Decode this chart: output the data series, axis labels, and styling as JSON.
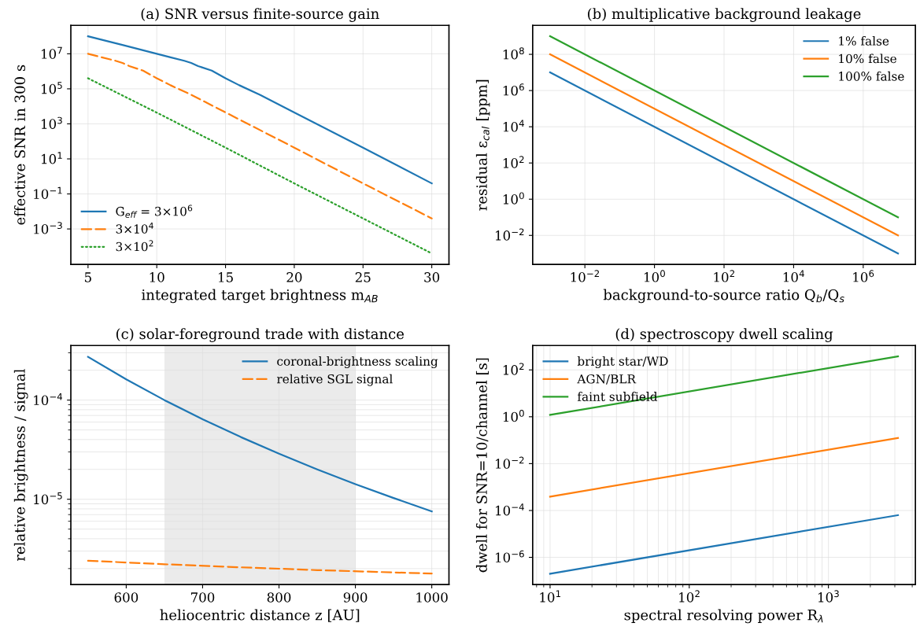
{
  "chart_data": [
    {
      "type": "line",
      "title": "(a) SNR versus finite-source gain",
      "xlabel": "integrated target brightness m$_{AB}$",
      "ylabel": "effective SNR in 300 s",
      "log": "y",
      "grid": true,
      "legend": "bottom left",
      "xlim": [
        3.75,
        31.25
      ],
      "xticks": [
        5,
        10,
        15,
        20,
        25,
        30
      ],
      "ylim": [
        9.5e-06,
        420000000.0
      ],
      "yticks": [
        {
          "value": 0.001,
          "label": "10$^{−3}$"
        },
        {
          "value": 0.1,
          "label": "10$^{−1}$"
        },
        {
          "value": 10,
          "label": "10$^{1}$"
        },
        {
          "value": 1000,
          "label": "10$^{3}$"
        },
        {
          "value": 100000,
          "label": "10$^{5}$"
        },
        {
          "value": 10000000,
          "label": "10$^{7}$"
        }
      ],
      "series": [
        {
          "name": "G$_{eff}$ = 3×10$^{6}$",
          "color": "#1f77b4",
          "line_style": "solid",
          "x": [
            5,
            7.5,
            10,
            11,
            12,
            12.5,
            13,
            14,
            15,
            16,
            17.5,
            20,
            25,
            30
          ],
          "values": [
            100000000.0,
            32000000.0,
            10000000.0,
            6300000.0,
            4000000.0,
            3000000.0,
            2000000.0,
            1100000.0,
            400000.0,
            160000.0,
            46000.0,
            4500.0,
            44,
            0.4
          ]
        },
        {
          "name": "3×10$^{4}$",
          "color": "#ff7f0e",
          "line_style": "dashed",
          "x": [
            5,
            6,
            7,
            7.5,
            8,
            9,
            10,
            11,
            12.5,
            15,
            20,
            25,
            30
          ],
          "values": [
            10000000.0,
            6300000.0,
            4000000.0,
            3000000.0,
            2000000.0,
            1100000.0,
            400000.0,
            160000.0,
            46000.0,
            4500.0,
            44,
            0.4,
            0.004
          ]
        },
        {
          "name": "3×10$^{2}$",
          "color": "#2ca02c",
          "line_style": "dotted",
          "x": [
            5,
            10,
            15,
            20,
            25,
            30
          ],
          "values": [
            400000.0,
            4400.0,
            44,
            0.4,
            0.004,
            4e-05
          ]
        }
      ]
    },
    {
      "type": "line",
      "title": "(b) multiplicative background leakage",
      "xlabel": "background-to-source ratio Q$_{b}$/Q$_{s}$",
      "ylabel": "residual ε$_{cal}$ [ppm]",
      "log": "xy",
      "grid": true,
      "legend": "top right",
      "xlim": [
        0.000316,
        31600000.0
      ],
      "ylim": [
        0.000251,
        3980000000.0
      ],
      "xticks": [
        {
          "value": 0.01,
          "label": "10$^{−2}$"
        },
        {
          "value": 1,
          "label": "10$^{0}$"
        },
        {
          "value": 100,
          "label": "10$^{2}$"
        },
        {
          "value": 10000,
          "label": "10$^{4}$"
        },
        {
          "value": 1000000,
          "label": "10$^{6}$"
        }
      ],
      "yticks": [
        {
          "value": 0.01,
          "label": "10$^{−2}$"
        },
        {
          "value": 1,
          "label": "10$^{0}$"
        },
        {
          "value": 100,
          "label": "10$^{2}$"
        },
        {
          "value": 10000,
          "label": "10$^{4}$"
        },
        {
          "value": 1000000,
          "label": "10$^{6}$"
        },
        {
          "value": 100000000,
          "label": "10$^{8}$"
        }
      ],
      "series": [
        {
          "name": "1% false",
          "color": "#1f77b4",
          "x": [
            0.001,
            10000,
            10000000
          ],
          "values": [
            10000000.0,
            1,
            0.001
          ]
        },
        {
          "name": "10% false",
          "color": "#ff7f0e",
          "x": [
            0.001,
            10000,
            10000000
          ],
          "values": [
            100000000.0,
            10,
            0.01
          ]
        },
        {
          "name": "100% false",
          "color": "#2ca02c",
          "x": [
            0.001,
            10000,
            10000000
          ],
          "values": [
            1000000000.0,
            100,
            0.1
          ]
        }
      ]
    },
    {
      "type": "line",
      "title": "(c) solar-foreground trade with distance",
      "xlabel": "heliocentric distance z [AU]",
      "ylabel": "relative brightness / signal",
      "log": "y",
      "grid": true,
      "legend": "top right",
      "xlim": [
        527.5,
        1022.5
      ],
      "xticks": [
        600,
        700,
        800,
        900,
        1000
      ],
      "ylim": [
        1.38e-06,
        0.000355
      ],
      "yticks": [
        {
          "value": 2e-06,
          "label": null
        },
        {
          "value": 3e-06,
          "label": null
        },
        {
          "value": 4e-06,
          "label": null
        },
        {
          "value": 5e-06,
          "label": null
        },
        {
          "value": 6e-06,
          "label": null
        },
        {
          "value": 7e-06,
          "label": null
        },
        {
          "value": 8e-06,
          "label": null
        },
        {
          "value": 9e-06,
          "label": null
        },
        {
          "value": 1e-05,
          "label": "10$^{−5}$"
        },
        {
          "value": 2e-05,
          "label": null
        },
        {
          "value": 3e-05,
          "label": null
        },
        {
          "value": 4e-05,
          "label": null
        },
        {
          "value": 5e-05,
          "label": null
        },
        {
          "value": 6e-05,
          "label": null
        },
        {
          "value": 7e-05,
          "label": null
        },
        {
          "value": 8e-05,
          "label": null
        },
        {
          "value": 9e-05,
          "label": null
        },
        {
          "value": 0.0001,
          "label": "10$^{−4}$"
        },
        {
          "value": 0.0002,
          "label": null
        },
        {
          "value": 0.0003,
          "label": null
        }
      ],
      "bands": [
        {
          "axis": "x",
          "from": 650,
          "to": 900,
          "color": "#ebebeb"
        }
      ],
      "series": [
        {
          "name": "coronal-brightness scaling",
          "color": "#1f77b4",
          "line_style": "solid",
          "x": [
            550,
            600,
            650,
            700,
            750,
            800,
            850,
            900,
            950,
            1000
          ],
          "values": [
            0.000273,
            0.000162,
            0.0001,
            6.42e-05,
            4.24e-05,
            2.88e-05,
            2e-05,
            1.42e-05,
            1.03e-05,
            7.55e-06
          ]
        },
        {
          "name": "relative SGL signal",
          "color": "#ff7f0e",
          "line_style": "dashed",
          "x": [
            550,
            650,
            750,
            850,
            1000
          ],
          "values": [
            2.4e-06,
            2.21e-06,
            2.06e-06,
            1.93e-06,
            1.78e-06
          ]
        }
      ]
    },
    {
      "type": "line",
      "title": "(d) spectroscopy dwell scaling",
      "xlabel": "spectral resolving power R$_{λ}$",
      "ylabel": "dwell for SNR=10/channel [s]",
      "log": "xy",
      "grid": true,
      "legend": "top left",
      "xlim": [
        7.5,
        4217
      ],
      "ylim": [
        6.9e-08,
        1096
      ],
      "xticks": [
        {
          "value": 8,
          "label": null
        },
        {
          "value": 9,
          "label": null
        },
        {
          "value": 10,
          "label": "10$^{1}$"
        },
        {
          "value": 20,
          "label": null
        },
        {
          "value": 30,
          "label": null
        },
        {
          "value": 40,
          "label": null
        },
        {
          "value": 50,
          "label": null
        },
        {
          "value": 60,
          "label": null
        },
        {
          "value": 70,
          "label": null
        },
        {
          "value": 80,
          "label": null
        },
        {
          "value": 90,
          "label": null
        },
        {
          "value": 100,
          "label": "10$^{2}$"
        },
        {
          "value": 200,
          "label": null
        },
        {
          "value": 300,
          "label": null
        },
        {
          "value": 400,
          "label": null
        },
        {
          "value": 500,
          "label": null
        },
        {
          "value": 600,
          "label": null
        },
        {
          "value": 700,
          "label": null
        },
        {
          "value": 800,
          "label": null
        },
        {
          "value": 900,
          "label": null
        },
        {
          "value": 1000,
          "label": "10$^{3}$"
        },
        {
          "value": 2000,
          "label": null
        },
        {
          "value": 3000,
          "label": null
        },
        {
          "value": 4000,
          "label": null
        }
      ],
      "yticks": [
        {
          "value": 1e-06,
          "label": "10$^{−6}$"
        },
        {
          "value": 0.0001,
          "label": "10$^{−4}$"
        },
        {
          "value": 0.01,
          "label": "10$^{−2}$"
        },
        {
          "value": 1,
          "label": "10$^{0}$"
        },
        {
          "value": 100,
          "label": "10$^{2}$"
        }
      ],
      "series": [
        {
          "name": "bright star/WD",
          "color": "#1f77b4",
          "x": [
            10,
            3162
          ],
          "values": [
            2e-07,
            6.3e-05
          ]
        },
        {
          "name": "AGN/BLR",
          "color": "#ff7f0e",
          "x": [
            10,
            3162
          ],
          "values": [
            0.00039,
            0.124
          ]
        },
        {
          "name": "faint subfield",
          "color": "#2ca02c",
          "x": [
            10,
            3162
          ],
          "values": [
            1.2,
            379
          ]
        }
      ]
    }
  ]
}
